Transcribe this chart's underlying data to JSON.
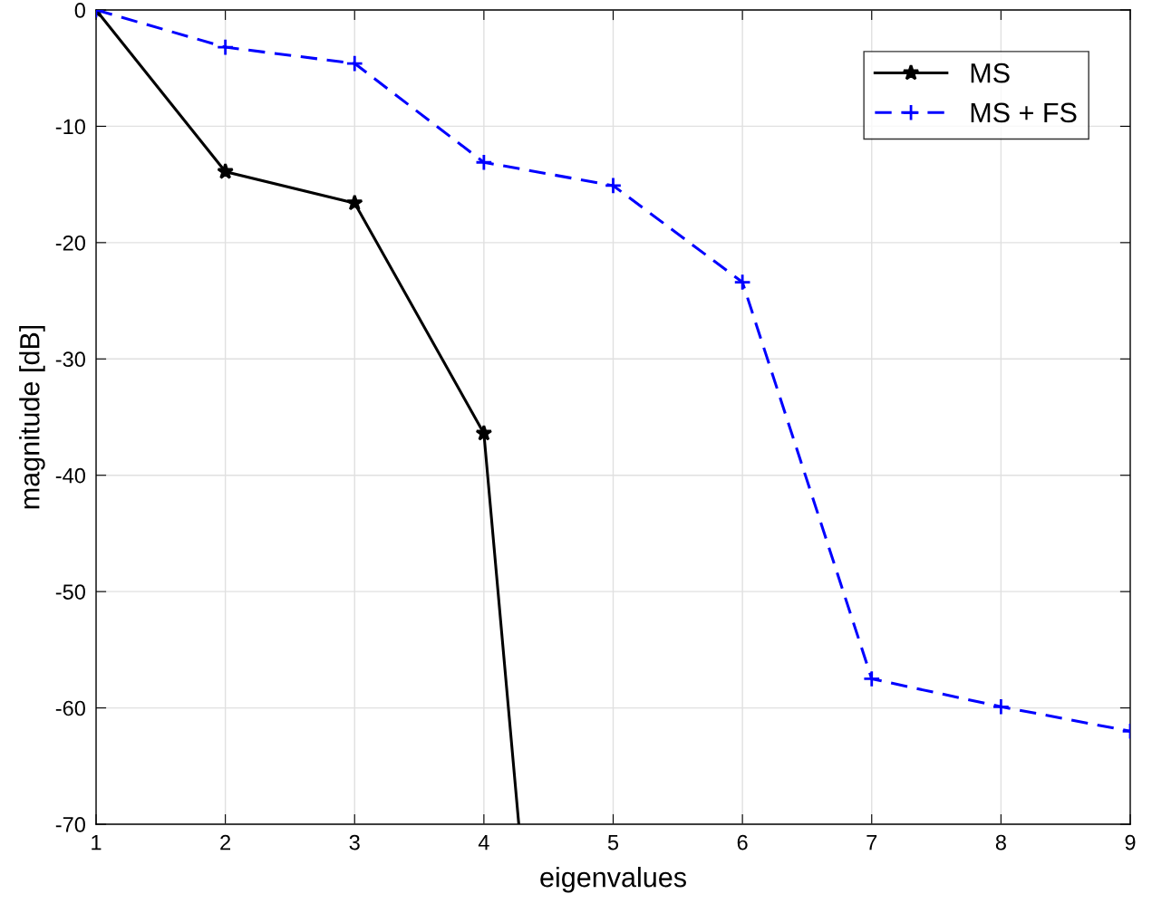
{
  "chart_data": {
    "type": "line",
    "xlabel": "eigenvalues",
    "ylabel": "magnitude [dB]",
    "xlim": [
      1,
      9
    ],
    "xticks": [
      1,
      2,
      3,
      4,
      5,
      6,
      7,
      8,
      9
    ],
    "ylim": [
      -70,
      0
    ],
    "yticks": [
      -70,
      -60,
      -50,
      -40,
      -30,
      -20,
      -10,
      0
    ],
    "grid": true,
    "legend": "top right",
    "series": [
      {
        "name": "MS",
        "color": "#000000",
        "marker": "star",
        "line_style": "solid",
        "x": [
          1,
          2,
          3,
          4,
          4.27
        ],
        "values": [
          0,
          -13.9,
          -16.6,
          -36.4,
          -70
        ]
      },
      {
        "name": "MS + FS",
        "color": "#0000ff",
        "marker": "cross",
        "line_style": "dashed",
        "x": [
          1,
          2,
          3,
          4,
          5,
          6,
          7,
          8,
          9
        ],
        "values": [
          0,
          -3.2,
          -4.6,
          -13.1,
          -15.1,
          -23.4,
          -57.5,
          -59.9,
          -62.0
        ]
      }
    ]
  }
}
